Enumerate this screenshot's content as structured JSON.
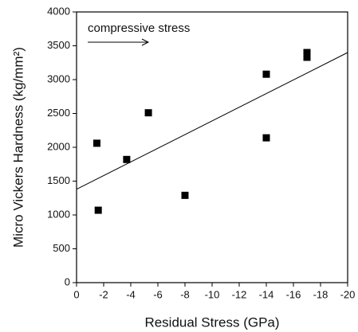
{
  "chart_data": {
    "type": "scatter",
    "x_label": "Residual Stress (GPa)",
    "y_label": "Micro Vickers Hardness (kg/mm²)",
    "annotation": "compressive stress",
    "x": [
      -1.5,
      -1.6,
      -3.7,
      -5.3,
      -8,
      -14,
      -14,
      -17,
      -17
    ],
    "values": [
      2060,
      1070,
      1820,
      2510,
      1290,
      3080,
      2140,
      3400,
      3330
    ],
    "color": "#000000",
    "fit_line": {
      "x": [
        0,
        -20
      ],
      "values": [
        1380,
        3400
      ]
    },
    "xlim": [
      0,
      -20
    ],
    "xticks": [
      0,
      -2,
      -4,
      -6,
      -8,
      -10,
      -12,
      -14,
      -16,
      -18,
      -20
    ],
    "ylim": [
      0,
      4000
    ],
    "yticks": [
      0,
      500,
      1000,
      1500,
      2000,
      2500,
      3000,
      3500,
      4000
    ]
  }
}
